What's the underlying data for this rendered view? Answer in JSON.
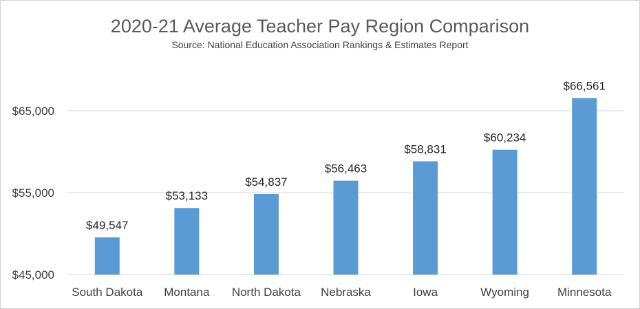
{
  "chart_data": {
    "type": "bar",
    "title": "2020-21 Average Teacher Pay Region Comparison",
    "subtitle": "Source: National Education Association Rankings & Estimates Report",
    "xlabel": "",
    "ylabel": "",
    "categories": [
      "South Dakota",
      "Montana",
      "North Dakota",
      "Nebraska",
      "Iowa",
      "Wyoming",
      "Minnesota"
    ],
    "values": [
      49547,
      53133,
      54837,
      56463,
      58831,
      60234,
      66561
    ],
    "data_labels": [
      "$49,547",
      "$53,133",
      "$54,837",
      "$56,463",
      "$58,831",
      "$60,234",
      "$66,561"
    ],
    "ylim": [
      45000,
      65000
    ],
    "yticks": [
      45000,
      55000,
      65000
    ],
    "ytick_labels": [
      "$45,000",
      "$55,000",
      "$65,000"
    ],
    "grid": true,
    "legend": "none",
    "colors": {
      "bar": "#5b9bd5",
      "grid": "#d9d9d9",
      "title": "#595959"
    }
  }
}
